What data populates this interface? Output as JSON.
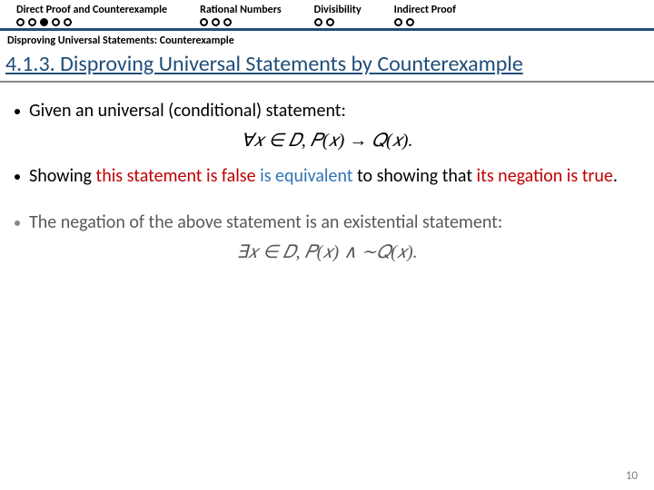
{
  "nav": {
    "items": [
      {
        "label": "Direct Proof and Counterexample",
        "dots": [
          false,
          false,
          true,
          false,
          false
        ]
      },
      {
        "label": "Rational Numbers",
        "dots": [
          false,
          false,
          false
        ]
      },
      {
        "label": "Divisibility",
        "dots": [
          false,
          false
        ]
      },
      {
        "label": "Indirect Proof",
        "dots": [
          false,
          false
        ]
      }
    ]
  },
  "breadcrumb": "Disproving Universal Statements: Counterexample",
  "title": "4.1.3. Disproving Universal Statements by Counterexample",
  "content": {
    "p1_lead": "Given an universal (conditional) statement:",
    "formula1": "∀𝑥 ∈ 𝐷, 𝑃(𝑥) → 𝑄(𝑥).",
    "p2_a": "Showing ",
    "p2_red1": "this statement is false",
    "p2_b": " ",
    "p2_blue": "is equivalent",
    "p2_c": " to showing that ",
    "p2_red2": "its negation is true",
    "p2_d": ".",
    "p3": "The negation of the above statement is an existential statement:",
    "formula2": "∃𝑥 ∈ 𝐷, 𝑃(𝑥) ∧ ∼𝑄(𝑥)."
  },
  "pagenum": "10",
  "colors": {
    "navBorder": "#1f4e79",
    "title": "#1f4e79",
    "red": "#c00000",
    "blue": "#2e74b5",
    "gray": "#595959"
  }
}
